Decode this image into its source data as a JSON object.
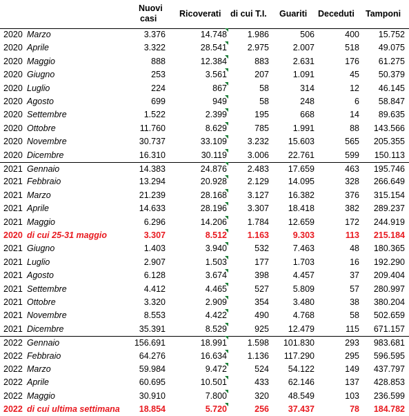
{
  "headers": {
    "nuovi_casi_1": "Nuovi",
    "nuovi_casi_2": "casi",
    "ricoverati": "Ricoverati",
    "di_cui_ti": "di cui T.I.",
    "guariti": "Guariti",
    "deceduti": "Deceduti",
    "tamponi": "Tamponi"
  },
  "rows": [
    {
      "year": "2020",
      "month": "Marzo",
      "nuovi": "3.376",
      "ricoverati": "14.748",
      "ti": "1.986",
      "guariti": "506",
      "deceduti": "400",
      "tamponi": "15.752"
    },
    {
      "year": "2020",
      "month": "Aprile",
      "nuovi": "3.322",
      "ricoverati": "28.541",
      "ti": "2.975",
      "guariti": "2.007",
      "deceduti": "518",
      "tamponi": "49.075"
    },
    {
      "year": "2020",
      "month": "Maggio",
      "nuovi": "888",
      "ricoverati": "12.384",
      "ti": "883",
      "guariti": "2.631",
      "deceduti": "176",
      "tamponi": "61.275"
    },
    {
      "year": "2020",
      "month": "Giugno",
      "nuovi": "253",
      "ricoverati": "3.561",
      "ti": "207",
      "guariti": "1.091",
      "deceduti": "45",
      "tamponi": "50.379"
    },
    {
      "year": "2020",
      "month": "Luglio",
      "nuovi": "224",
      "ricoverati": "867",
      "ti": "58",
      "guariti": "314",
      "deceduti": "12",
      "tamponi": "46.145"
    },
    {
      "year": "2020",
      "month": "Agosto",
      "nuovi": "699",
      "ricoverati": "949",
      "ti": "58",
      "guariti": "248",
      "deceduti": "6",
      "tamponi": "58.847"
    },
    {
      "year": "2020",
      "month": "Settembre",
      "nuovi": "1.522",
      "ricoverati": "2.399",
      "ti": "195",
      "guariti": "668",
      "deceduti": "14",
      "tamponi": "89.635"
    },
    {
      "year": "2020",
      "month": "Ottobre",
      "nuovi": "11.760",
      "ricoverati": "8.629",
      "ti": "785",
      "guariti": "1.991",
      "deceduti": "88",
      "tamponi": "143.566"
    },
    {
      "year": "2020",
      "month": "Novembre",
      "nuovi": "30.737",
      "ricoverati": "33.109",
      "ti": "3.232",
      "guariti": "15.603",
      "deceduti": "565",
      "tamponi": "205.355"
    },
    {
      "year": "2020",
      "month": "Dicembre",
      "nuovi": "16.310",
      "ricoverati": "30.119",
      "ti": "3.006",
      "guariti": "22.761",
      "deceduti": "599",
      "tamponi": "150.113"
    },
    {
      "year": "2021",
      "month": "Gennaio",
      "nuovi": "14.383",
      "ricoverati": "24.876",
      "ti": "2.483",
      "guariti": "17.659",
      "deceduti": "463",
      "tamponi": "195.746"
    },
    {
      "year": "2021",
      "month": "Febbraio",
      "nuovi": "13.294",
      "ricoverati": "20.928",
      "ti": "2.129",
      "guariti": "14.095",
      "deceduti": "328",
      "tamponi": "266.649"
    },
    {
      "year": "2021",
      "month": "Marzo",
      "nuovi": "21.239",
      "ricoverati": "28.168",
      "ti": "3.127",
      "guariti": "16.382",
      "deceduti": "376",
      "tamponi": "315.154"
    },
    {
      "year": "2021",
      "month": "Aprile",
      "nuovi": "14.633",
      "ricoverati": "28.196",
      "ti": "3.307",
      "guariti": "18.418",
      "deceduti": "382",
      "tamponi": "289.237"
    },
    {
      "year": "2021",
      "month": "Maggio",
      "nuovi": "6.296",
      "ricoverati": "14.206",
      "ti": "1.784",
      "guariti": "12.659",
      "deceduti": "172",
      "tamponi": "244.919"
    },
    {
      "year": "2020",
      "month": "di cui 25-31 maggio",
      "nuovi": "3.307",
      "ricoverati": "8.512",
      "ti": "1.163",
      "guariti": "9.303",
      "deceduti": "113",
      "tamponi": "215.184",
      "highlight": true
    },
    {
      "year": "2021",
      "month": "Giugno",
      "nuovi": "1.403",
      "ricoverati": "3.940",
      "ti": "532",
      "guariti": "7.463",
      "deceduti": "48",
      "tamponi": "180.365"
    },
    {
      "year": "2021",
      "month": "Luglio",
      "nuovi": "2.907",
      "ricoverati": "1.503",
      "ti": "177",
      "guariti": "1.703",
      "deceduti": "16",
      "tamponi": "192.290"
    },
    {
      "year": "2021",
      "month": "Agosto",
      "nuovi": "6.128",
      "ricoverati": "3.674",
      "ti": "398",
      "guariti": "4.457",
      "deceduti": "37",
      "tamponi": "209.404"
    },
    {
      "year": "2021",
      "month": "Settembre",
      "nuovi": "4.412",
      "ricoverati": "4.465",
      "ti": "527",
      "guariti": "5.809",
      "deceduti": "57",
      "tamponi": "280.997"
    },
    {
      "year": "2021",
      "month": "Ottobre",
      "nuovi": "3.320",
      "ricoverati": "2.909",
      "ti": "354",
      "guariti": "3.480",
      "deceduti": "38",
      "tamponi": "380.204"
    },
    {
      "year": "2021",
      "month": "Novembre",
      "nuovi": "8.553",
      "ricoverati": "4.422",
      "ti": "490",
      "guariti": "4.768",
      "deceduti": "58",
      "tamponi": "502.659"
    },
    {
      "year": "2021",
      "month": "Dicembre",
      "nuovi": "35.391",
      "ricoverati": "8.529",
      "ti": "925",
      "guariti": "12.479",
      "deceduti": "115",
      "tamponi": "671.157"
    },
    {
      "year": "2022",
      "month": "Gennaio",
      "nuovi": "156.691",
      "ricoverati": "18.991",
      "ti": "1.598",
      "guariti": "101.830",
      "deceduti": "293",
      "tamponi": "983.681"
    },
    {
      "year": "2022",
      "month": "Febbraio",
      "nuovi": "64.276",
      "ricoverati": "16.634",
      "ti": "1.136",
      "guariti": "117.290",
      "deceduti": "295",
      "tamponi": "596.595"
    },
    {
      "year": "2022",
      "month": "Marzo",
      "nuovi": "59.984",
      "ricoverati": "9.472",
      "ti": "524",
      "guariti": "54.122",
      "deceduti": "149",
      "tamponi": "437.797"
    },
    {
      "year": "2022",
      "month": "Aprile",
      "nuovi": "60.695",
      "ricoverati": "10.501",
      "ti": "433",
      "guariti": "62.146",
      "deceduti": "137",
      "tamponi": "428.853"
    },
    {
      "year": "2022",
      "month": "Maggio",
      "nuovi": "30.910",
      "ricoverati": "7.800",
      "ti": "320",
      "guariti": "48.549",
      "deceduti": "103",
      "tamponi": "236.599"
    },
    {
      "year": "2022",
      "month": "di cui ultima settimana",
      "nuovi": "18.854",
      "ricoverati": "5.720",
      "ti": "256",
      "guariti": "37.437",
      "deceduti": "78",
      "tamponi": "184.782",
      "highlight": true
    }
  ],
  "colors": {
    "highlight_text": "#e8191f",
    "comment_marker": "#1a7f37"
  },
  "icons": {
    "comment_marker": "comment-indicator-icon"
  }
}
